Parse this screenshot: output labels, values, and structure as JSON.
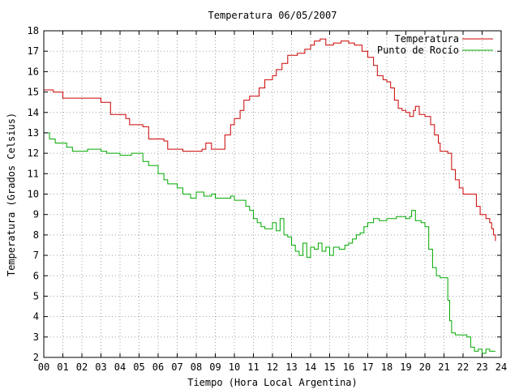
{
  "chart_data": {
    "type": "line",
    "title": "Temperatura 06/05/2007",
    "xlabel": "Tiempo (Hora Local Argentina)",
    "ylabel": "Temperatura (Grados Celsius)",
    "xlim": [
      0,
      24
    ],
    "ylim": [
      2,
      18
    ],
    "grid": true,
    "legend_position": "top-right",
    "x_ticks": [
      {
        "value": 0,
        "label": "00"
      },
      {
        "value": 1,
        "label": "01"
      },
      {
        "value": 2,
        "label": "02"
      },
      {
        "value": 3,
        "label": "03"
      },
      {
        "value": 4,
        "label": "04"
      },
      {
        "value": 5,
        "label": "05"
      },
      {
        "value": 6,
        "label": "06"
      },
      {
        "value": 7,
        "label": "07"
      },
      {
        "value": 8,
        "label": "08"
      },
      {
        "value": 9,
        "label": "09"
      },
      {
        "value": 10,
        "label": "10"
      },
      {
        "value": 11,
        "label": "11"
      },
      {
        "value": 12,
        "label": "12"
      },
      {
        "value": 13,
        "label": "13"
      },
      {
        "value": 14,
        "label": "14"
      },
      {
        "value": 15,
        "label": "15"
      },
      {
        "value": 16,
        "label": "16"
      },
      {
        "value": 17,
        "label": "17"
      },
      {
        "value": 18,
        "label": "18"
      },
      {
        "value": 19,
        "label": "19"
      },
      {
        "value": 20,
        "label": "20"
      },
      {
        "value": 21,
        "label": "21"
      },
      {
        "value": 22,
        "label": "22"
      },
      {
        "value": 23,
        "label": "23"
      },
      {
        "value": 24,
        "label": "24"
      }
    ],
    "y_ticks": [
      {
        "value": 2,
        "label": "2"
      },
      {
        "value": 3,
        "label": "3"
      },
      {
        "value": 4,
        "label": "4"
      },
      {
        "value": 5,
        "label": "5"
      },
      {
        "value": 6,
        "label": "6"
      },
      {
        "value": 7,
        "label": "7"
      },
      {
        "value": 8,
        "label": "8"
      },
      {
        "value": 9,
        "label": "9"
      },
      {
        "value": 10,
        "label": "10"
      },
      {
        "value": 11,
        "label": "11"
      },
      {
        "value": 12,
        "label": "12"
      },
      {
        "value": 13,
        "label": "13"
      },
      {
        "value": 14,
        "label": "14"
      },
      {
        "value": 15,
        "label": "15"
      },
      {
        "value": 16,
        "label": "16"
      },
      {
        "value": 17,
        "label": "17"
      },
      {
        "value": 18,
        "label": "18"
      }
    ],
    "series": [
      {
        "name": "Temperatura",
        "color": "#cc0000",
        "step": true,
        "points": [
          [
            0.0,
            15.1
          ],
          [
            0.5,
            15.0
          ],
          [
            1.0,
            14.7
          ],
          [
            2.5,
            14.7
          ],
          [
            3.0,
            14.5
          ],
          [
            3.5,
            14.4
          ],
          [
            3.5,
            13.9
          ],
          [
            4.0,
            13.9
          ],
          [
            4.3,
            13.7
          ],
          [
            4.5,
            13.4
          ],
          [
            5.2,
            13.3
          ],
          [
            5.5,
            13.0
          ],
          [
            5.5,
            12.7
          ],
          [
            6.3,
            12.6
          ],
          [
            6.5,
            12.2
          ],
          [
            7.3,
            12.1
          ],
          [
            8.0,
            12.1
          ],
          [
            8.3,
            12.2
          ],
          [
            8.5,
            12.5
          ],
          [
            8.8,
            12.2
          ],
          [
            9.3,
            12.2
          ],
          [
            9.5,
            12.9
          ],
          [
            9.8,
            13.4
          ],
          [
            10.0,
            13.7
          ],
          [
            10.3,
            14.1
          ],
          [
            10.5,
            14.6
          ],
          [
            10.8,
            14.8
          ],
          [
            11.0,
            14.8
          ],
          [
            11.3,
            15.2
          ],
          [
            11.6,
            15.6
          ],
          [
            12.0,
            15.8
          ],
          [
            12.2,
            16.1
          ],
          [
            12.5,
            16.4
          ],
          [
            12.8,
            16.8
          ],
          [
            13.3,
            16.9
          ],
          [
            13.7,
            17.1
          ],
          [
            14.0,
            17.3
          ],
          [
            14.2,
            17.5
          ],
          [
            14.5,
            17.6
          ],
          [
            14.8,
            17.3
          ],
          [
            15.2,
            17.4
          ],
          [
            15.6,
            17.5
          ],
          [
            16.0,
            17.4
          ],
          [
            16.3,
            17.3
          ],
          [
            16.7,
            17.0
          ],
          [
            17.0,
            16.7
          ],
          [
            17.3,
            16.3
          ],
          [
            17.5,
            15.8
          ],
          [
            17.8,
            15.6
          ],
          [
            18.0,
            15.5
          ],
          [
            18.2,
            15.2
          ],
          [
            18.4,
            14.6
          ],
          [
            18.6,
            14.2
          ],
          [
            18.8,
            14.1
          ],
          [
            19.0,
            14.0
          ],
          [
            19.2,
            13.8
          ],
          [
            19.4,
            14.1
          ],
          [
            19.5,
            14.3
          ],
          [
            19.7,
            13.9
          ],
          [
            20.0,
            13.8
          ],
          [
            20.3,
            13.4
          ],
          [
            20.5,
            12.9
          ],
          [
            20.7,
            12.5
          ],
          [
            20.8,
            12.1
          ],
          [
            21.2,
            12.0
          ],
          [
            21.4,
            11.2
          ],
          [
            21.6,
            10.7
          ],
          [
            21.8,
            10.3
          ],
          [
            22.0,
            10.0
          ],
          [
            22.5,
            10.0
          ],
          [
            22.7,
            9.4
          ],
          [
            22.9,
            9.0
          ],
          [
            23.2,
            8.8
          ],
          [
            23.4,
            8.6
          ],
          [
            23.5,
            8.3
          ],
          [
            23.6,
            8.0
          ],
          [
            23.7,
            7.7
          ]
        ]
      },
      {
        "name": "Punto de Rocío",
        "color": "#00aa00",
        "step": true,
        "points": [
          [
            0.0,
            13.0
          ],
          [
            0.3,
            12.7
          ],
          [
            0.6,
            12.5
          ],
          [
            1.2,
            12.3
          ],
          [
            1.5,
            12.1
          ],
          [
            2.0,
            12.1
          ],
          [
            2.3,
            12.2
          ],
          [
            3.0,
            12.1
          ],
          [
            3.3,
            12.0
          ],
          [
            4.0,
            11.9
          ],
          [
            4.6,
            12.0
          ],
          [
            5.0,
            12.0
          ],
          [
            5.2,
            11.6
          ],
          [
            5.5,
            11.4
          ],
          [
            6.0,
            11.0
          ],
          [
            6.3,
            10.7
          ],
          [
            6.5,
            10.5
          ],
          [
            7.0,
            10.3
          ],
          [
            7.3,
            10.0
          ],
          [
            7.7,
            9.8
          ],
          [
            8.0,
            10.1
          ],
          [
            8.4,
            9.9
          ],
          [
            8.8,
            10.0
          ],
          [
            9.0,
            9.8
          ],
          [
            9.5,
            9.8
          ],
          [
            9.8,
            9.9
          ],
          [
            10.0,
            9.7
          ],
          [
            10.4,
            9.7
          ],
          [
            10.6,
            9.4
          ],
          [
            10.8,
            9.2
          ],
          [
            11.0,
            8.8
          ],
          [
            11.2,
            8.6
          ],
          [
            11.4,
            8.4
          ],
          [
            11.6,
            8.3
          ],
          [
            11.8,
            8.3
          ],
          [
            12.0,
            8.6
          ],
          [
            12.2,
            8.2
          ],
          [
            12.4,
            8.8
          ],
          [
            12.6,
            8.0
          ],
          [
            12.8,
            7.9
          ],
          [
            13.0,
            7.5
          ],
          [
            13.2,
            7.2
          ],
          [
            13.4,
            7.0
          ],
          [
            13.6,
            7.6
          ],
          [
            13.8,
            6.9
          ],
          [
            14.0,
            7.4
          ],
          [
            14.2,
            7.3
          ],
          [
            14.4,
            7.6
          ],
          [
            14.6,
            7.2
          ],
          [
            14.8,
            7.4
          ],
          [
            15.0,
            7.0
          ],
          [
            15.2,
            7.4
          ],
          [
            15.5,
            7.3
          ],
          [
            15.8,
            7.5
          ],
          [
            16.0,
            7.6
          ],
          [
            16.2,
            7.8
          ],
          [
            16.4,
            8.0
          ],
          [
            16.6,
            8.1
          ],
          [
            16.8,
            8.4
          ],
          [
            17.0,
            8.6
          ],
          [
            17.3,
            8.8
          ],
          [
            17.6,
            8.7
          ],
          [
            18.0,
            8.8
          ],
          [
            18.5,
            8.9
          ],
          [
            19.0,
            8.8
          ],
          [
            19.2,
            8.9
          ],
          [
            19.3,
            9.2
          ],
          [
            19.5,
            8.7
          ],
          [
            19.8,
            8.6
          ],
          [
            20.0,
            8.4
          ],
          [
            20.2,
            7.3
          ],
          [
            20.4,
            6.4
          ],
          [
            20.6,
            6.0
          ],
          [
            20.8,
            5.9
          ],
          [
            21.0,
            5.9
          ],
          [
            21.2,
            4.8
          ],
          [
            21.3,
            3.8
          ],
          [
            21.4,
            3.2
          ],
          [
            21.6,
            3.1
          ],
          [
            22.0,
            3.1
          ],
          [
            22.2,
            3.0
          ],
          [
            22.4,
            2.5
          ],
          [
            22.6,
            2.3
          ],
          [
            22.8,
            2.4
          ],
          [
            23.0,
            2.2
          ],
          [
            23.2,
            2.4
          ],
          [
            23.4,
            2.3
          ],
          [
            23.7,
            2.3
          ]
        ]
      }
    ]
  }
}
